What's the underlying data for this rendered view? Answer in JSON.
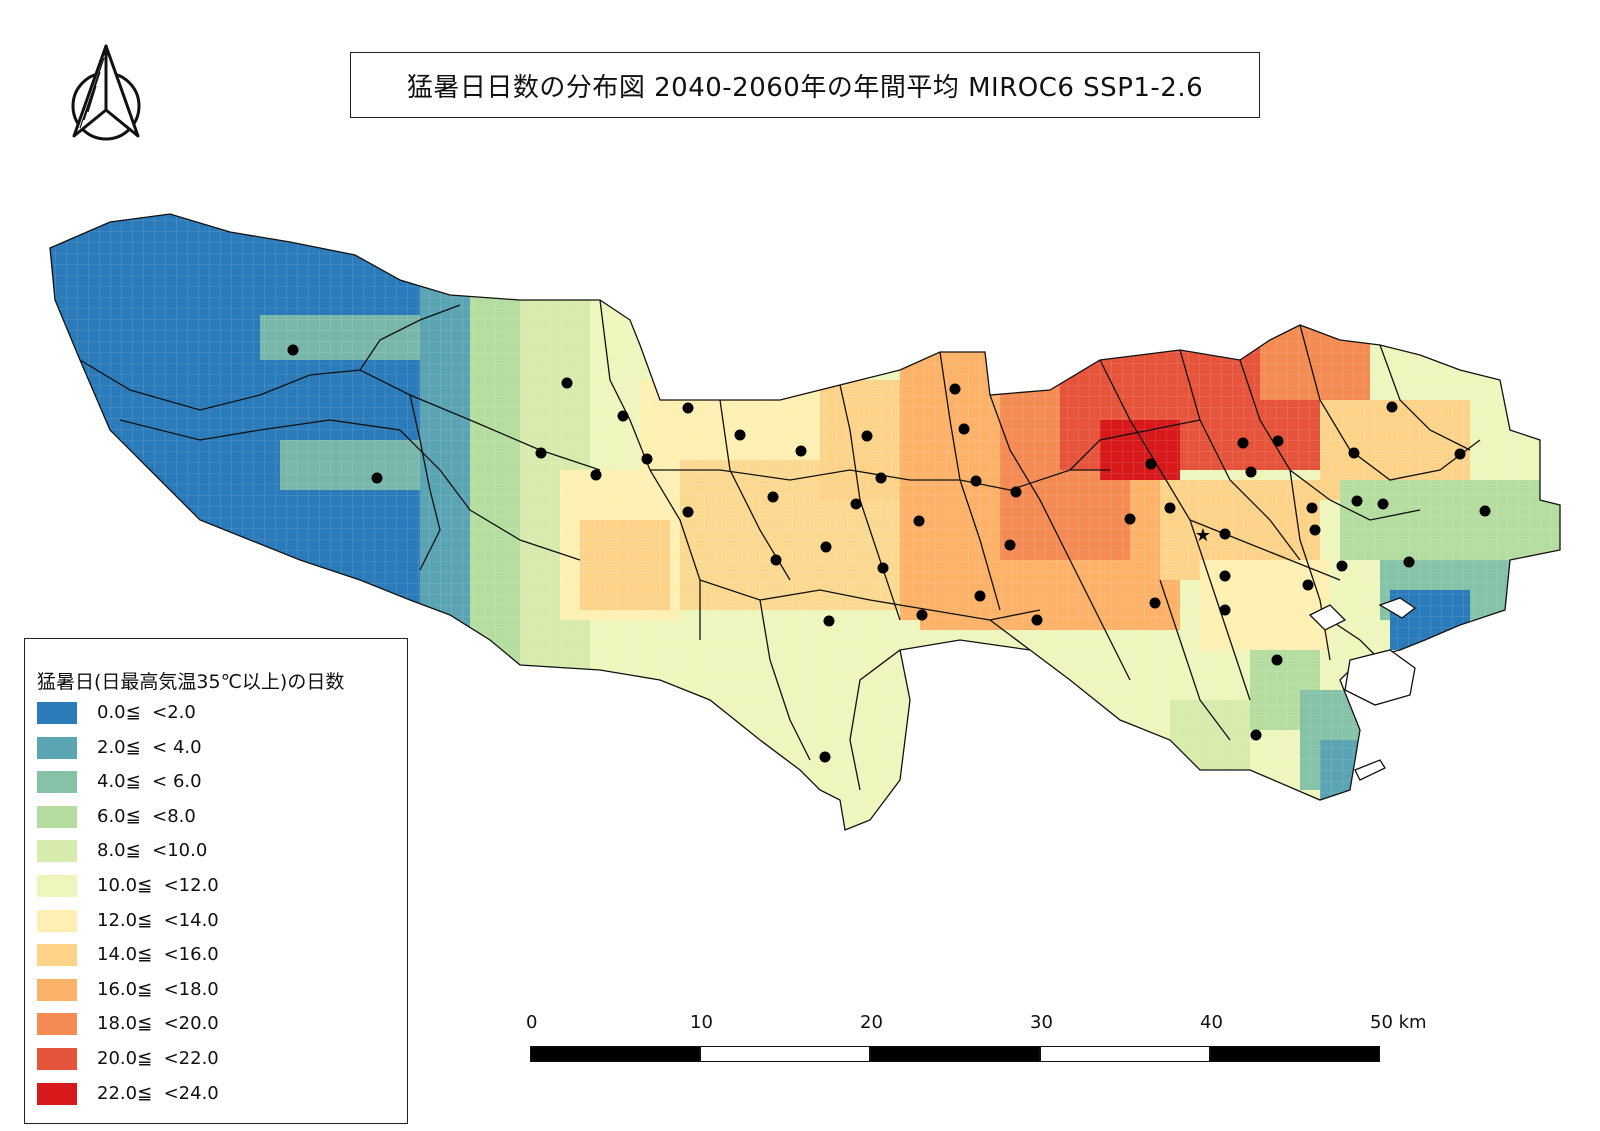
{
  "title": "猛暑日日数の分布図 2040-2060年の年間平均 MIROC6 SSP1-2.6",
  "north_arrow": {
    "icon": "north-arrow-icon"
  },
  "legend": {
    "title": "猛暑日(日最高気温35℃以上)の日数",
    "items": [
      {
        "label": "0.0≦  <2.0",
        "color": "#2b7bba"
      },
      {
        "label": "2.0≦  < 4.0",
        "color": "#5aa4b4"
      },
      {
        "label": "4.0≦  < 6.0",
        "color": "#86c2a7"
      },
      {
        "label": "6.0≦  <8.0",
        "color": "#b5dd9f"
      },
      {
        "label": "8.0≦  <10.0",
        "color": "#d7ebac"
      },
      {
        "label": "10.0≦  <12.0",
        "color": "#eef6bd"
      },
      {
        "label": "12.0≦  <14.0",
        "color": "#fef0b2"
      },
      {
        "label": "14.0≦  <16.0",
        "color": "#fdd38a"
      },
      {
        "label": "16.0≦  <18.0",
        "color": "#fcb269"
      },
      {
        "label": "18.0≦  <20.0",
        "color": "#f48b54"
      },
      {
        "label": "20.0≦  <22.0",
        "color": "#e5543b"
      },
      {
        "label": "22.0≦  <24.0",
        "color": "#d7191c"
      }
    ]
  },
  "scale_bar": {
    "labels": [
      "0",
      "10",
      "20",
      "30",
      "40",
      "50 km"
    ]
  }
}
